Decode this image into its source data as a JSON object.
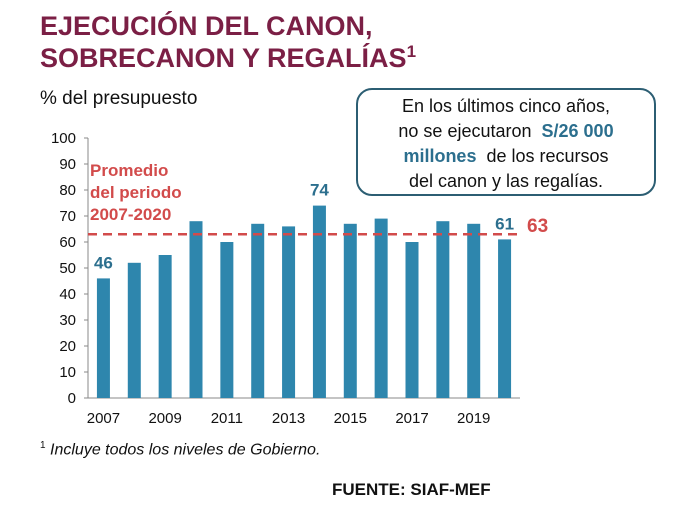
{
  "header": {
    "title_line1": "EJECUCIÓN DEL CANON,",
    "title_line2": "SOBRECANON Y REGALÍAS",
    "title_note_marker": "1",
    "subtitle": "% del presupuesto"
  },
  "callout": {
    "line1": "En los últimos cinco años,",
    "line2_prefix": "no se ejecutaron",
    "highlight1": "S/26 000",
    "highlight2": "millones",
    "line3_suffix": "de los recursos",
    "line4": "del canon y las regalías."
  },
  "footnote": {
    "marker": "1",
    "text": "Incluye todos los niveles de Gobierno."
  },
  "source": "FUENTE: SIAF-MEF",
  "colors": {
    "bar": "#2e86ad",
    "average": "#d24b4b",
    "title": "#7b1f45",
    "label": "#2c6f8e"
  },
  "chart_data": {
    "type": "bar",
    "categories": [
      "2007",
      "2008",
      "2009",
      "2010",
      "2011",
      "2012",
      "2013",
      "2014",
      "2015",
      "2016",
      "2017",
      "2018",
      "2019",
      "2020"
    ],
    "values": [
      46,
      52,
      55,
      68,
      60,
      67,
      66,
      74,
      67,
      69,
      60,
      68,
      67,
      61
    ],
    "x_tick_labels": [
      "2007",
      "2009",
      "2011",
      "2013",
      "2015",
      "2017",
      "2019"
    ],
    "y_ticks": [
      0,
      10,
      20,
      30,
      40,
      50,
      60,
      70,
      80,
      90,
      100
    ],
    "ylim": [
      0,
      100
    ],
    "grid": false,
    "data_labels": [
      {
        "category": "2007",
        "text": "46"
      },
      {
        "category": "2014",
        "text": "74"
      },
      {
        "category": "2020",
        "text": "61"
      }
    ],
    "average": {
      "value": 63,
      "label_lines": [
        "Promedio",
        "del periodo",
        "2007-2020"
      ],
      "value_text": "63"
    }
  }
}
